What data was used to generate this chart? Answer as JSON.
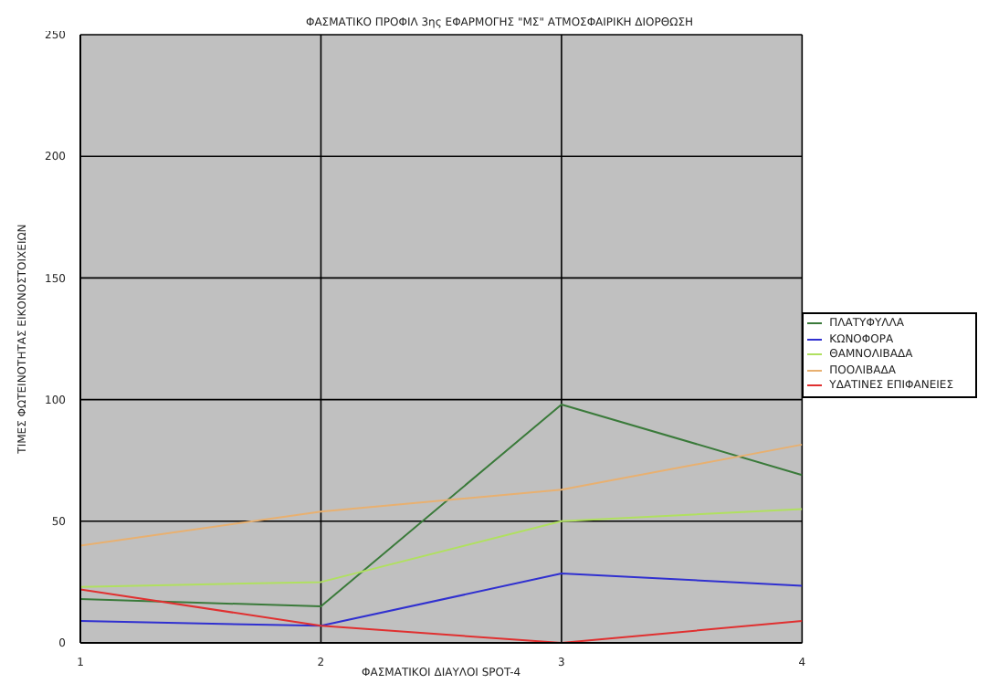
{
  "chart_data": {
    "type": "line",
    "title": "ΦΑΣΜΑΤΙΚΟ ΠΡΟΦΙΛ 3ης ΕΦΑΡΜΟΓΗΣ \"ΜΣ\" ΑΤΜΟΣΦΑΙΡΙΚΗ ΔΙΟΡΘΩΣΗ",
    "xlabel": "ΦΑΣΜΑΤΙΚΟΙ ΔΙΑΥΛΟΙ SPOT-4",
    "ylabel": "ΤΙΜΕΣ ΦΩΤΕΙΝΟΤΗΤΑΣ ΕΙΚΟΝΟΣΤΟΙΧΕΙΩΝ",
    "x": [
      1,
      2,
      3,
      4
    ],
    "xlim": [
      1,
      4
    ],
    "xticks": [
      1,
      2,
      3,
      4
    ],
    "ylim": [
      0,
      250
    ],
    "yticks": [
      0,
      50,
      100,
      150,
      200,
      250
    ],
    "grid": true,
    "legend": "right",
    "marker": "none",
    "series": [
      {
        "name": "ΠΛΑΤΥΦΥΛΛΑ",
        "color": "#3a7a3a",
        "values": [
          18,
          15,
          98,
          69
        ]
      },
      {
        "name": "ΚΩΝΟΦΟΡΑ",
        "color": "#3030d0",
        "values": [
          9,
          7,
          28.5,
          23.5
        ]
      },
      {
        "name": "ΘΑΜΝΟΛΙΒΑΔΑ",
        "color": "#b0e060",
        "values": [
          23,
          25,
          50,
          55
        ]
      },
      {
        "name": "ΠΟΟΛΙΒΑΔΑ",
        "color": "#e8b070",
        "values": [
          40,
          54,
          63,
          81.5
        ]
      },
      {
        "name": "ΥΔΑΤΙΝΕΣ ΕΠΙΦΑΝΕΙΕΣ",
        "color": "#e03030",
        "values": [
          22,
          7,
          0,
          9
        ]
      }
    ]
  }
}
